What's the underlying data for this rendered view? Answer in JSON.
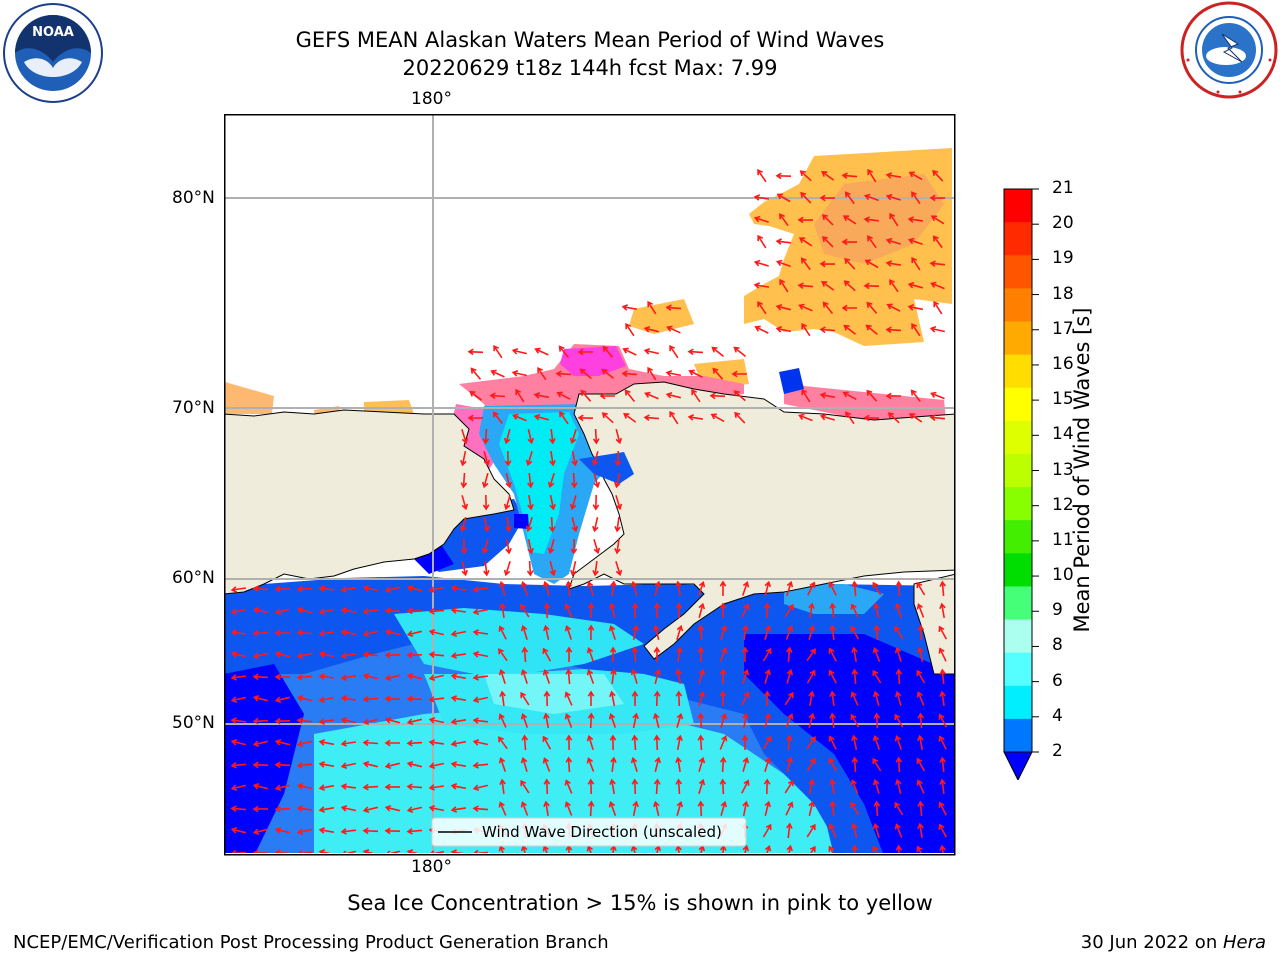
{
  "header": {
    "title_line1": "GEFS MEAN Alaskan Waters Mean Period of Wind Waves",
    "title_line2": "20220629 t18z 144h fcst   Max: 7.99"
  },
  "logos": {
    "left": "noaa-logo",
    "right": "national-weather-service-logo"
  },
  "map": {
    "graticule_labels": {
      "lon_top": "180°",
      "lon_bottom": "180°",
      "lat": [
        "80°N",
        "70°N",
        "60°N",
        "50°N"
      ]
    },
    "legend_label": "Wind Wave Direction (unscaled)",
    "colors": {
      "land": "#efecdc",
      "ocean_unfilled": "#ffffff",
      "arrow": "#ff1a1a"
    }
  },
  "colorbar": {
    "label": "Mean Period of Wind Waves [s]",
    "ticks": [
      "21",
      "20",
      "19",
      "18",
      "17",
      "16",
      "15",
      "14",
      "13",
      "12",
      "11",
      "10",
      "9",
      "8",
      "6",
      "4",
      "2"
    ],
    "colors": [
      "#ff0000",
      "#ff2a00",
      "#ff5500",
      "#ff8000",
      "#ffaa00",
      "#ffdd00",
      "#ffff00",
      "#ddff00",
      "#bbff00",
      "#88ff00",
      "#44ee00",
      "#00dd00",
      "#44ff77",
      "#aaffee",
      "#55ffff",
      "#00eeff",
      "#0077ff"
    ],
    "extend_color": "#0000ff"
  },
  "footer": {
    "note": "Sea Ice Concentration > 15% is shown in pink to yellow",
    "credit": "NCEP/EMC/Verification Post Processing Product Generation Branch",
    "date_prefix": "30 Jun 2022 on ",
    "machine": "Hera"
  }
}
